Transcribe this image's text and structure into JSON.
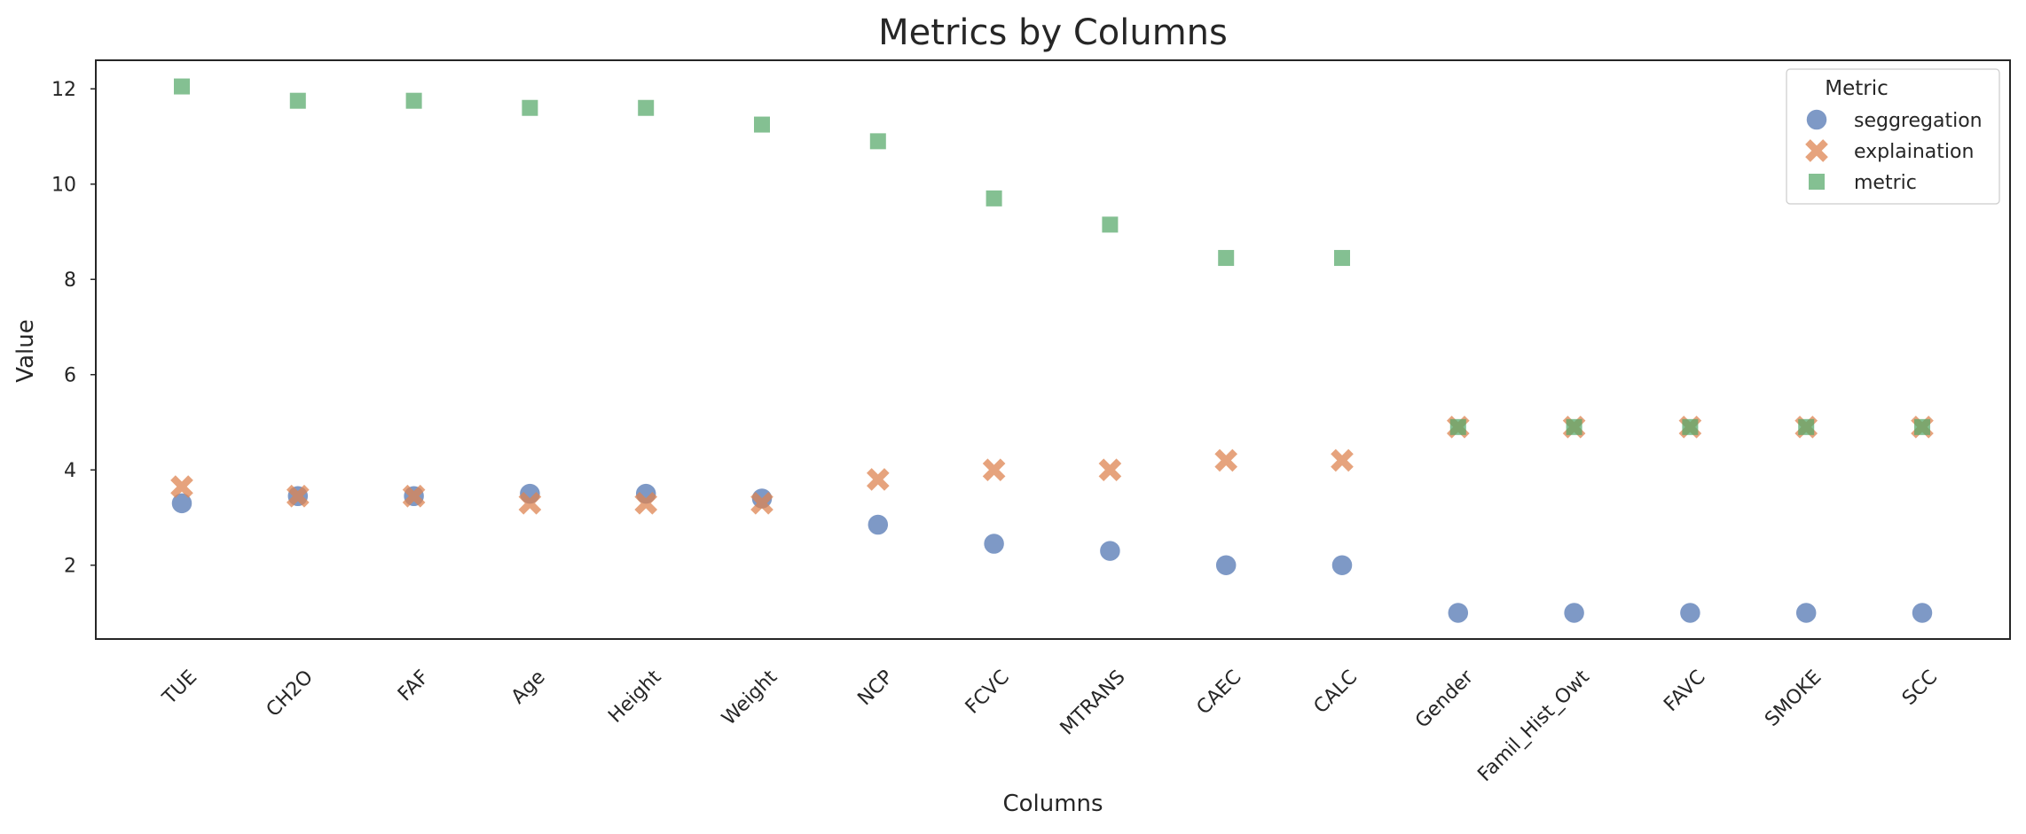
{
  "chart_data": {
    "type": "scatter",
    "title": "Metrics by Columns",
    "xlabel": "Columns",
    "ylabel": "Value",
    "categories": [
      "TUE",
      "CH2O",
      "FAF",
      "Age",
      "Height",
      "Weight",
      "NCP",
      "FCVC",
      "MTRANS",
      "CAEC",
      "CALC",
      "Gender",
      "Famil_Hist_Owt",
      "FAVC",
      "SMOKE",
      "SCC"
    ],
    "yticks": [
      2,
      4,
      6,
      8,
      10,
      12
    ],
    "ylim": [
      0.45,
      12.6
    ],
    "grid": false,
    "legend": {
      "title": "Metric",
      "position": "top-right"
    },
    "series": [
      {
        "name": "seggregation",
        "marker": "circle",
        "color": "#4c72b0",
        "values": [
          3.3,
          3.45,
          3.45,
          3.5,
          3.5,
          3.4,
          2.85,
          2.45,
          2.3,
          2.0,
          2.0,
          1.0,
          1.0,
          1.0,
          1.0,
          1.0
        ]
      },
      {
        "name": "explaination",
        "marker": "x",
        "color": "#dd8452",
        "values": [
          3.65,
          3.45,
          3.45,
          3.3,
          3.3,
          3.3,
          3.8,
          4.0,
          4.0,
          4.2,
          4.2,
          4.9,
          4.9,
          4.9,
          4.9,
          4.9
        ]
      },
      {
        "name": "metric",
        "marker": "square",
        "color": "#55a868",
        "values": [
          12.05,
          11.75,
          11.75,
          11.6,
          11.6,
          11.25,
          10.9,
          9.7,
          9.15,
          8.45,
          8.45,
          4.9,
          4.9,
          4.9,
          4.9,
          4.9
        ]
      }
    ]
  }
}
